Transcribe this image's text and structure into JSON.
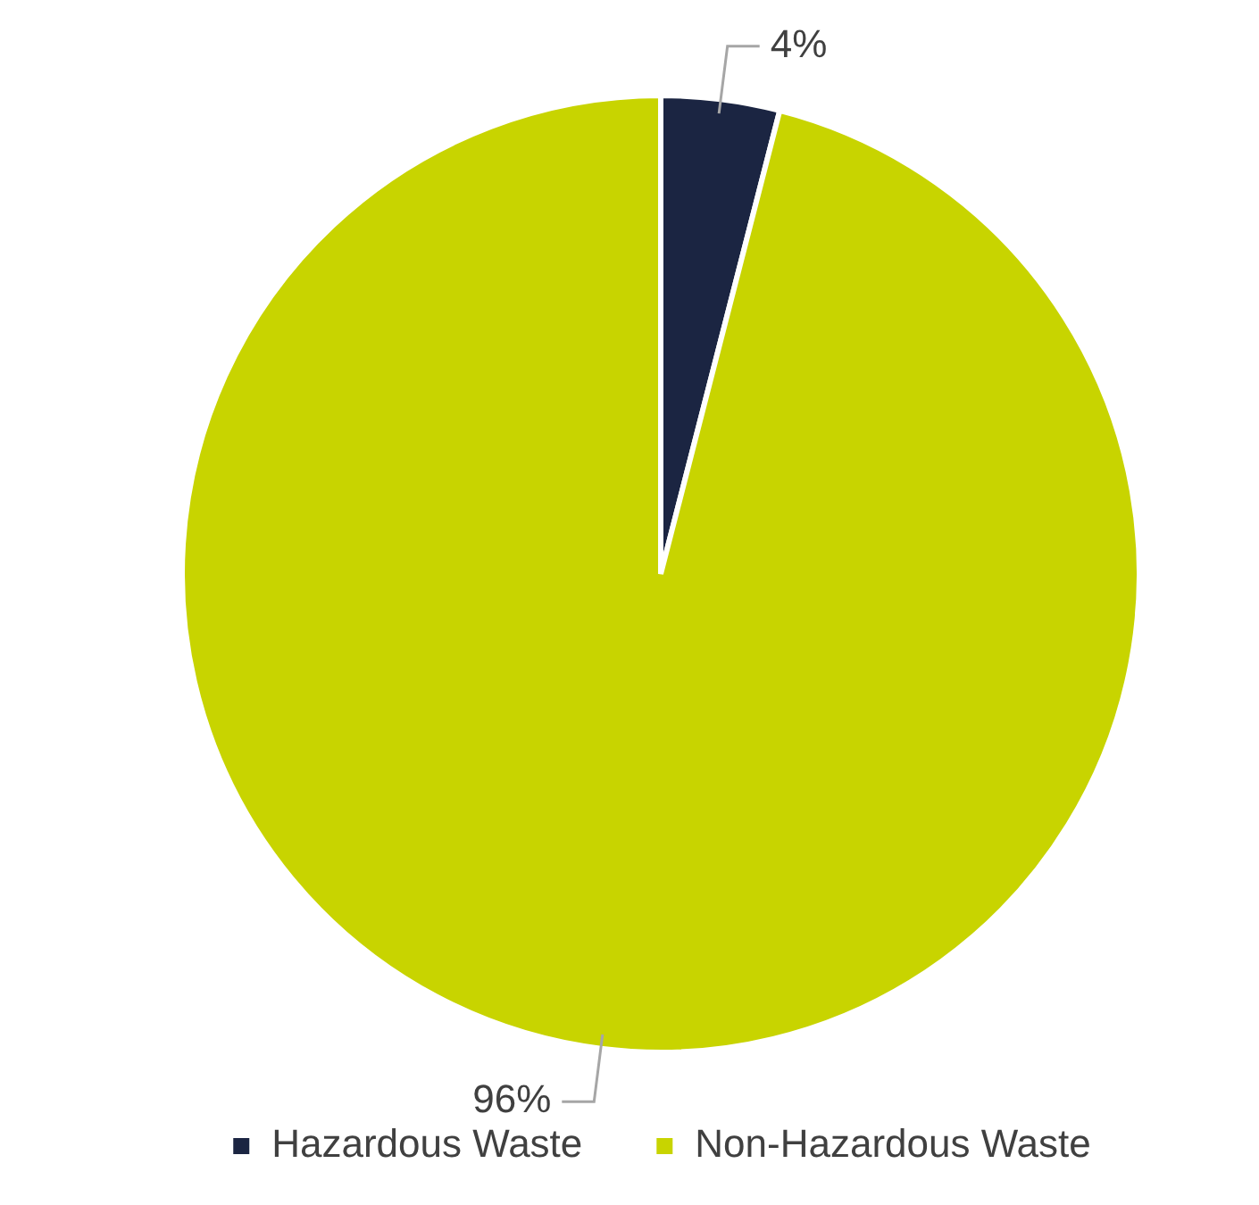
{
  "chart_data": {
    "type": "pie",
    "categories": [
      "Hazardous Waste",
      "Non-Hazardous Waste"
    ],
    "values": [
      4,
      96
    ],
    "colors": [
      "#1b2542",
      "#c8d400"
    ],
    "value_labels": [
      "4%",
      "96%"
    ],
    "legend": "bottom"
  }
}
